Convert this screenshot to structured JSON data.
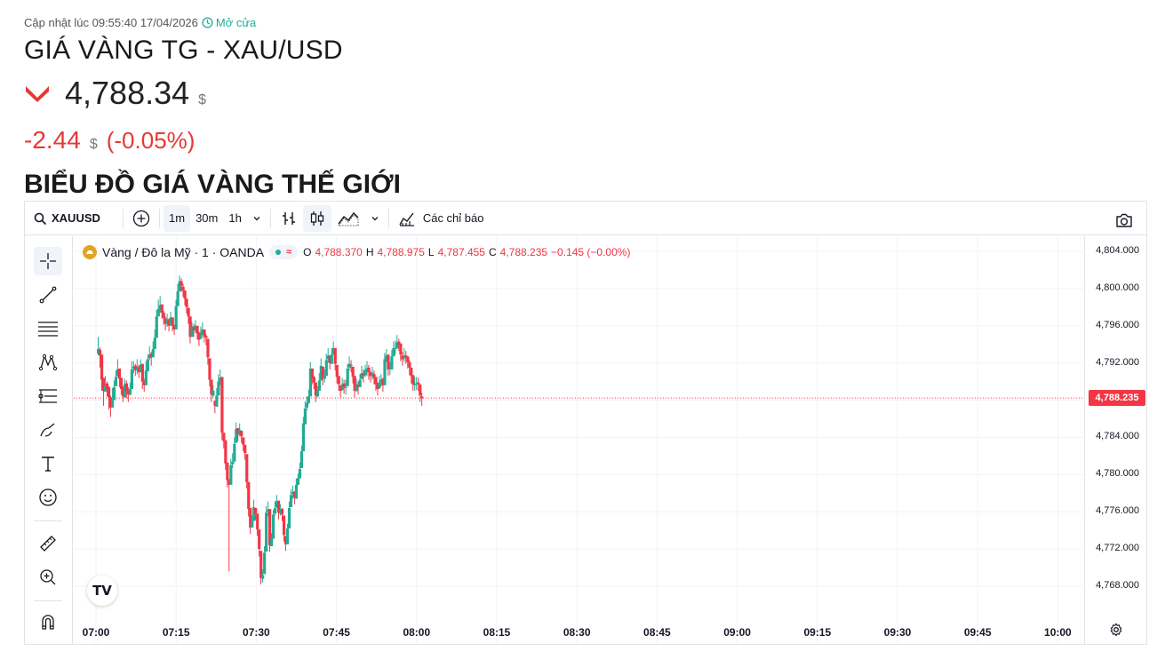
{
  "header": {
    "updated_text": "Cập nhật lúc 09:55:40 17/04/2026",
    "status_text": "Mở cửa",
    "title": "GIÁ VÀNG TG - XAU/USD",
    "price": "4,788.34",
    "currency": "$",
    "change": "-2.44",
    "change_pct": "(-0.05%)",
    "section_title": "BIỂU ĐỒ GIÁ VÀNG THẾ GIỚI"
  },
  "toolbar": {
    "symbol": "XAUUSD",
    "intervals": [
      "1m",
      "30m",
      "1h"
    ],
    "active_interval": "1m",
    "indicators_label": "Các chỉ báo"
  },
  "legend": {
    "name": "Vàng / Đô la Mỹ · 1 · OANDA",
    "o_label": "O",
    "o": "4,788.370",
    "h_label": "H",
    "h": "4,788.975",
    "l_label": "L",
    "l": "4,787.455",
    "c_label": "C",
    "c": "4,788.235",
    "change": "−0.145 (−0.00%)"
  },
  "colors": {
    "up": "#22ab94",
    "down": "#f23645",
    "accent": "#2962ff"
  },
  "chart_data": {
    "type": "candlestick",
    "y_ticks": [
      "4,804.000",
      "4,800.000",
      "4,796.000",
      "4,792.000",
      "4,788.000",
      "4,784.000",
      "4,780.000",
      "4,776.000",
      "4,772.000",
      "4,768.000"
    ],
    "x_ticks": [
      "07:00",
      "07:15",
      "07:30",
      "07:45",
      "08:00",
      "08:15",
      "08:30",
      "08:45",
      "09:00",
      "09:15",
      "09:30",
      "09:45",
      "10:00"
    ],
    "ylim": [
      4765,
      4805
    ],
    "current_price_label": "4,788.235",
    "current_price": 4788.235,
    "closes": [
      4793.5,
      4792.8,
      4790.2,
      4789.0,
      4789.6,
      4789.2,
      4788.3,
      4787.2,
      4788.0,
      4789.4,
      4790.5,
      4791.3,
      4790.3,
      4789.2,
      4788.4,
      4789.7,
      4789.0,
      4788.6,
      4789.2,
      4791.3,
      4791.6,
      4791.2,
      4791.5,
      4791.0,
      4791.8,
      4790.0,
      4789.6,
      4791.2,
      4792.4,
      4792.9,
      4792.6,
      4793.5,
      4794.7,
      4797.0,
      4797.8,
      4798.2,
      4797.4,
      4796.8,
      4796.2,
      4796.7,
      4796.0,
      4796.9,
      4796.1,
      4795.6,
      4798.1,
      4799.7,
      4800.8,
      4800.3,
      4799.8,
      4798.9,
      4798.0,
      4797.0,
      4794.8,
      4795.9,
      4795.5,
      4796.0,
      4795.2,
      4794.5,
      4795.2,
      4795.6,
      4794.8,
      4794.7,
      4792.6,
      4790.2,
      4788.6,
      4789.0,
      4787.4,
      4788.5,
      4790.0,
      4790.4,
      4784.5,
      4783.6,
      4781.2,
      4779.4,
      4778.9,
      4781.0,
      4781.4,
      4783.3,
      4784.9,
      4784.3,
      4784.8,
      4784.1,
      4783.2,
      4782.3,
      4779.2,
      4776.3,
      4774.3,
      4775.0,
      4776.5,
      4775.8,
      4774.1,
      4772.0,
      4768.9,
      4769.2,
      4771.6,
      4775.9,
      4776.2,
      4772.4,
      4773.1,
      4775.7,
      4776.4,
      4777.1,
      4775.9,
      4776.2,
      4775.7,
      4773.5,
      4772.5,
      4774.2,
      4776.4,
      4777.8,
      4778.1,
      4777.5,
      4778.9,
      4779.6,
      4780.6,
      4782.5,
      4785.5,
      4787.1,
      4787.7,
      4788.4,
      4791.4,
      4790.4,
      4789.9,
      4788.5,
      4789.0,
      4790.1,
      4791.7,
      4790.3,
      4790.6,
      4792.3,
      4792.8,
      4792.0,
      4792.9,
      4793.6,
      4791.9,
      4790.5,
      4789.7,
      4789.0,
      4789.7,
      4789.4,
      4789.4,
      4791.4,
      4791.9,
      4791.7,
      4790.5,
      4789.0,
      4789.6,
      4789.4,
      4790.2,
      4790.9,
      4790.6,
      4791.2,
      4791.4,
      4791.0,
      4790.6,
      4790.9,
      4790.4,
      4789.7,
      4789.2,
      4789.9,
      4790.2,
      4789.6,
      4792.4,
      4792.8,
      4791.3,
      4791.4,
      4792.7,
      4793.6,
      4793.6,
      4794.2,
      4794.0,
      4792.9,
      4792.4,
      4792.8,
      4792.6,
      4792.1,
      4791.5,
      4790.6,
      4789.7,
      4789.7,
      4789.8,
      4789.7,
      4788.5,
      4788.2
    ],
    "highs": [
      4794.8,
      4793.7,
      4791.0,
      4789.8,
      4790.6,
      4790.0,
      4789.5,
      4788.5,
      4789.3,
      4790.1,
      4791.2,
      4792.4,
      4791.1,
      4790.1,
      4789.5,
      4790.3,
      4790.1,
      4789.4,
      4789.9,
      4792.2,
      4792.2,
      4791.9,
      4792.4,
      4791.8,
      4792.4,
      4790.6,
      4790.3,
      4792.2,
      4792.9,
      4793.8,
      4793.2,
      4794.3,
      4795.6,
      4797.7,
      4798.8,
      4799.2,
      4798.3,
      4797.6,
      4797.0,
      4797.3,
      4796.8,
      4797.5,
      4796.7,
      4796.1,
      4798.8,
      4800.5,
      4801.4,
      4801.1,
      4800.5,
      4799.5,
      4798.7,
      4798.0,
      4795.3,
      4796.4,
      4796.2,
      4796.6,
      4795.8,
      4795.1,
      4795.9,
      4796.4,
      4795.5,
      4795.1,
      4793.3,
      4791.1,
      4789.5,
      4789.6,
      4788.0,
      4789.3,
      4790.8,
      4791.3,
      4785.2,
      4784.4,
      4782.1,
      4780.2,
      4779.5,
      4781.7,
      4782.3,
      4784.0,
      4785.6,
      4784.9,
      4785.5,
      4784.7,
      4783.7,
      4782.9,
      4780.0,
      4777.0,
      4774.9,
      4775.6,
      4777.3,
      4776.4,
      4774.6,
      4772.7,
      4769.8,
      4769.8,
      4772.3,
      4776.6,
      4777.1,
      4773.3,
      4773.7,
      4776.2,
      4777.2,
      4777.8,
      4776.5,
      4776.8,
      4776.4,
      4774.1,
      4773.3,
      4774.7,
      4777.1,
      4778.4,
      4778.8,
      4778.1,
      4779.6,
      4780.1,
      4781.3,
      4783.1,
      4786.2,
      4787.9,
      4788.4,
      4789.1,
      4792.1,
      4791.1,
      4790.6,
      4789.1,
      4789.5,
      4790.9,
      4792.5,
      4790.9,
      4791.3,
      4793.0,
      4793.6,
      4792.8,
      4793.6,
      4794.3,
      4792.5,
      4791.2,
      4790.4,
      4789.6,
      4790.4,
      4790.2,
      4790.2,
      4791.9,
      4792.7,
      4792.3,
      4791.1,
      4789.6,
      4790.3,
      4790.0,
      4790.8,
      4791.7,
      4791.3,
      4791.8,
      4792.2,
      4791.8,
      4791.1,
      4791.6,
      4791.2,
      4790.3,
      4789.9,
      4790.6,
      4790.8,
      4790.4,
      4793.1,
      4793.5,
      4792.0,
      4792.1,
      4793.4,
      4794.3,
      4794.4,
      4795.0,
      4794.6,
      4793.6,
      4793.2,
      4793.6,
      4793.3,
      4792.7,
      4792.3,
      4791.4,
      4790.4,
      4790.5,
      4790.5,
      4790.4,
      4789.2,
      4788.8
    ],
    "lows": [
      4792.8,
      4791.5,
      4789.0,
      4787.4,
      4789.0,
      4788.4,
      4787.0,
      4786.2,
      4787.2,
      4788.5,
      4789.7,
      4790.5,
      4789.4,
      4788.6,
      4787.8,
      4788.8,
      4788.2,
      4787.8,
      4788.5,
      4790.7,
      4790.9,
      4790.6,
      4790.8,
      4790.4,
      4791.1,
      4789.2,
      4788.9,
      4790.4,
      4791.8,
      4792.3,
      4791.7,
      4792.8,
      4794.0,
      4796.3,
      4797.2,
      4797.4,
      4796.8,
      4796.1,
      4795.5,
      4795.9,
      4795.4,
      4796.3,
      4795.4,
      4795.0,
      4797.3,
      4799.0,
      4800.0,
      4799.6,
      4799.1,
      4798.2,
      4797.3,
      4796.2,
      4794.1,
      4795.2,
      4794.8,
      4795.2,
      4794.5,
      4793.8,
      4794.6,
      4795.0,
      4794.2,
      4793.9,
      4791.8,
      4789.5,
      4787.8,
      4788.3,
      4786.6,
      4787.7,
      4789.3,
      4789.6,
      4783.7,
      4782.8,
      4780.5,
      4778.6,
      4769.6,
      4780.3,
      4780.7,
      4782.6,
      4784.2,
      4783.6,
      4784.1,
      4783.4,
      4782.5,
      4781.6,
      4778.5,
      4775.5,
      4773.6,
      4774.3,
      4775.8,
      4775.1,
      4773.4,
      4771.2,
      4768.2,
      4768.4,
      4770.8,
      4775.2,
      4775.5,
      4771.7,
      4772.4,
      4775.0,
      4775.6,
      4776.4,
      4775.2,
      4775.6,
      4775.0,
      4772.8,
      4771.8,
      4773.5,
      4775.7,
      4777.1,
      4777.4,
      4776.8,
      4778.2,
      4778.9,
      4779.8,
      4781.8,
      4784.7,
      4786.3,
      4786.9,
      4787.6,
      4790.7,
      4789.7,
      4789.2,
      4787.8,
      4788.3,
      4789.4,
      4791.0,
      4789.6,
      4789.9,
      4791.5,
      4792.0,
      4791.3,
      4792.1,
      4792.9,
      4791.2,
      4789.8,
      4789.0,
      4788.3,
      4789.0,
      4788.7,
      4788.6,
      4790.6,
      4791.2,
      4791.0,
      4789.8,
      4788.3,
      4788.9,
      4788.6,
      4789.5,
      4790.2,
      4789.9,
      4790.5,
      4790.6,
      4790.2,
      4789.9,
      4790.2,
      4789.7,
      4789.0,
      4788.5,
      4789.2,
      4789.5,
      4788.9,
      4791.7,
      4792.1,
      4790.6,
      4790.7,
      4792.0,
      4792.9,
      4792.9,
      4793.5,
      4793.3,
      4792.2,
      4791.7,
      4792.1,
      4791.9,
      4791.4,
      4790.7,
      4789.8,
      4789.0,
      4789.0,
      4789.1,
      4789.0,
      4787.8,
      4787.4
    ],
    "opens": [
      4793.0,
      4793.4,
      4792.9,
      4790.4,
      4788.9,
      4789.8,
      4789.4,
      4788.3,
      4787.2,
      4788.0,
      4789.5,
      4790.6,
      4791.4,
      4790.4,
      4789.3,
      4788.3,
      4789.8,
      4789.0,
      4788.6,
      4789.2,
      4791.4,
      4791.7,
      4791.2,
      4791.6,
      4791.0,
      4791.9,
      4790.0,
      4789.6,
      4791.1,
      4792.5,
      4793.0,
      4792.6,
      4793.5,
      4794.7,
      4797.0,
      4797.8,
      4798.3,
      4797.4,
      4796.8,
      4796.2,
      4796.6,
      4796.0,
      4796.9,
      4796.1,
      4795.6,
      4798.1,
      4799.7,
      4800.8,
      4800.2,
      4799.8,
      4798.9,
      4797.9,
      4797.0,
      4794.8,
      4795.9,
      4795.6,
      4796.0,
      4795.3,
      4794.6,
      4795.1,
      4795.6,
      4794.9,
      4794.6,
      4792.5,
      4790.2,
      4788.5,
      4787.9,
      4787.3,
      4788.5,
      4790.0,
      4790.5,
      4784.5,
      4783.7,
      4781.3,
      4779.5,
      4778.9,
      4781.1,
      4781.4,
      4783.4,
      4785.0,
      4784.3,
      4784.7,
      4784.0,
      4783.2,
      4782.2,
      4779.2,
      4776.4,
      4774.3,
      4775.0,
      4776.4,
      4775.8,
      4774.1,
      4771.8,
      4768.8,
      4769.3,
      4771.7,
      4776.0,
      4776.3,
      4772.3,
      4773.1,
      4775.8,
      4776.5,
      4777.2,
      4775.8,
      4776.3,
      4775.6,
      4773.4,
      4772.5,
      4774.2,
      4776.5,
      4777.9,
      4778.2,
      4777.4,
      4778.9,
      4779.6,
      4780.7,
      4782.5,
      4785.4,
      4787.2,
      4787.7,
      4788.4,
      4791.4,
      4790.5,
      4789.9,
      4788.4,
      4789.0,
      4790.1,
      4791.6,
      4790.3,
      4790.6,
      4792.4,
      4792.8,
      4791.9,
      4792.9,
      4793.6,
      4791.8,
      4790.6,
      4789.6,
      4789.1,
      4789.8,
      4789.3,
      4789.5,
      4791.5,
      4791.8,
      4791.6,
      4790.6,
      4789.0,
      4789.7,
      4789.4,
      4790.3,
      4790.9,
      4790.7,
      4791.1,
      4791.5,
      4791.0,
      4790.7,
      4790.8,
      4790.5,
      4789.7,
      4789.3,
      4789.9,
      4790.3,
      4789.6,
      4792.3,
      4792.9,
      4791.3,
      4791.3,
      4792.7,
      4793.5,
      4793.6,
      4794.3,
      4794.1,
      4792.8,
      4792.5,
      4792.8,
      4792.7,
      4792.1,
      4791.5,
      4790.7,
      4789.6,
      4789.8,
      4789.9,
      4789.7,
      4788.4
    ]
  }
}
